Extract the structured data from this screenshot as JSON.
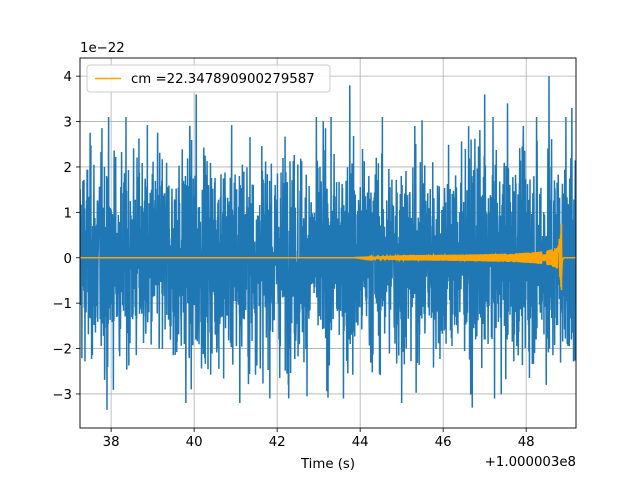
{
  "chart_data": {
    "type": "line",
    "title": "",
    "xlabel": "Time (s)",
    "ylabel": "",
    "x_offset_label": "+1.000003e8",
    "y_scale_label": "1e−22",
    "xlim": [
      37.25,
      49.2
    ],
    "ylim": [
      -3.75,
      4.4
    ],
    "x_ticks": [
      38,
      40,
      42,
      44,
      46,
      48
    ],
    "x_tick_labels": [
      "38",
      "40",
      "42",
      "44",
      "46",
      "48"
    ],
    "y_ticks": [
      -3,
      -2,
      -1,
      0,
      1,
      2,
      3,
      4
    ],
    "y_tick_labels": [
      "−3",
      "−2",
      "−1",
      "0",
      "1",
      "2",
      "3",
      "4"
    ],
    "grid": true,
    "legend": {
      "placement": "top-left",
      "entries": [
        "cm =22.347890900279587"
      ]
    },
    "series": [
      {
        "name": "",
        "color": "#1f77b4",
        "description": "noise strain",
        "t_start": 37.25,
        "t_end": 49.2,
        "envelope_abs": 2.5,
        "spikes": [
          {
            "x": 37.9,
            "y": -3.35
          },
          {
            "x": 39.8,
            "y": -3.2
          },
          {
            "x": 40.05,
            "y": 3.6
          },
          {
            "x": 41.1,
            "y": -3.2
          },
          {
            "x": 43.75,
            "y": 3.8
          },
          {
            "x": 45.0,
            "y": -3.2
          },
          {
            "x": 46.7,
            "y": -3.3
          },
          {
            "x": 47.0,
            "y": 3.6
          },
          {
            "x": 47.55,
            "y": 3.4
          },
          {
            "x": 48.25,
            "y": 3.1
          },
          {
            "x": 48.55,
            "y": 4.0
          },
          {
            "x": 49.1,
            "y": 3.3
          }
        ]
      },
      {
        "name": "cm =22.347890900279587",
        "color": "#ffa500",
        "description": "chirp template",
        "t_start": 37.25,
        "t_merge": 48.85,
        "t_end": 49.2,
        "amplitude_at_merge": 0.75
      }
    ]
  }
}
